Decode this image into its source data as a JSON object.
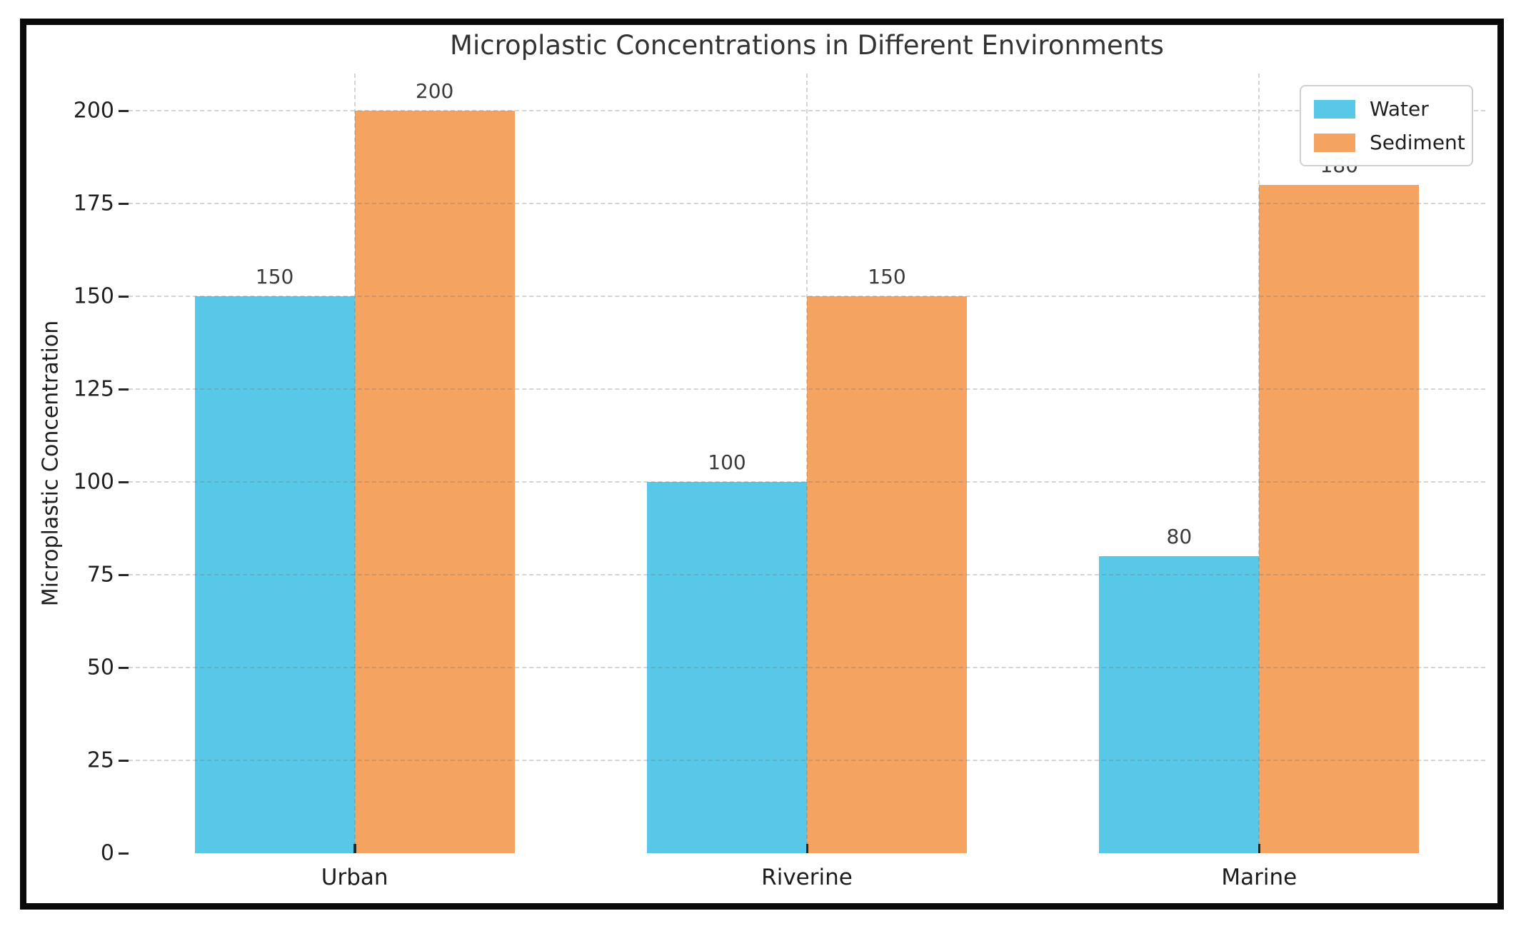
{
  "figure": {
    "background": "#ffffff",
    "frame_color": "#0a0a0a"
  },
  "chart_data": {
    "type": "bar",
    "title": "Microplastic Concentrations in Different Environments",
    "xlabel": "",
    "ylabel": "Microplastic Concentration",
    "categories": [
      "Urban",
      "Riverine",
      "Marine"
    ],
    "series": [
      {
        "name": "Water",
        "color": "#58C8E8",
        "values": [
          150,
          100,
          80
        ]
      },
      {
        "name": "Sediment",
        "color": "#F5A360",
        "values": [
          200,
          150,
          180
        ]
      }
    ],
    "value_labels_shown": true,
    "yticks": [
      0,
      25,
      50,
      75,
      100,
      125,
      150,
      175,
      200
    ],
    "ylim": [
      0,
      210
    ],
    "grid": "dashed",
    "grid_color": "#c9c9c9",
    "legend_position": "upper right",
    "title_color": "#333333",
    "tick_label_color": "#1f1f1f",
    "spine_color": "#333333"
  }
}
